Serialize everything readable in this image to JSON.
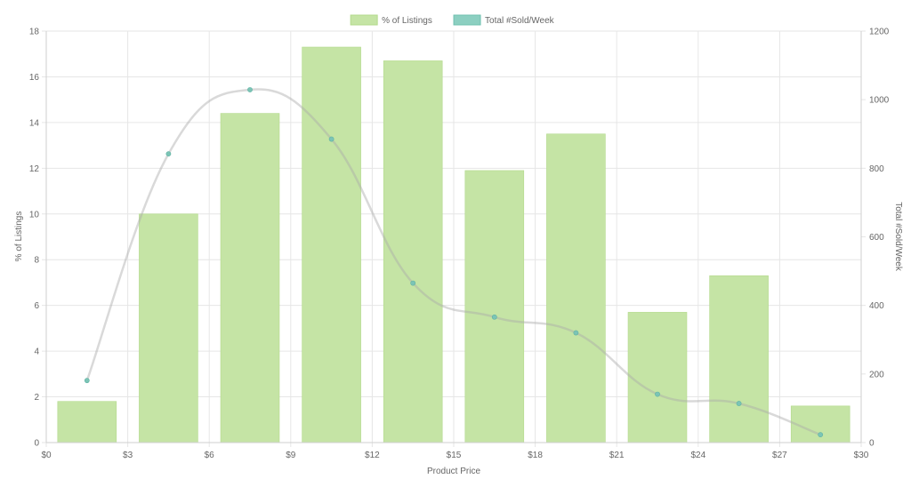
{
  "chart_data": {
    "type": "bar",
    "legend": [
      {
        "label": "% of Listings",
        "color": "#c5e4a5",
        "border": "#b3da8c"
      },
      {
        "label": "Total #Sold/Week",
        "color": "#8ccfc1",
        "border": "#6fc0b0"
      }
    ],
    "legend_position": "top-center",
    "xlabel": "Product Price",
    "ylabel_left": "% of Listings",
    "ylabel_right": "Total #Sold/Week",
    "x_ticks": [
      "$0",
      "$3",
      "$6",
      "$9",
      "$12",
      "$15",
      "$18",
      "$21",
      "$24",
      "$27",
      "$30"
    ],
    "x_range": [
      0,
      30
    ],
    "y_left_ticks": [
      "0",
      "2",
      "4",
      "6",
      "8",
      "10",
      "12",
      "14",
      "16",
      "18"
    ],
    "y_left_range": [
      0,
      18
    ],
    "y_right_ticks": [
      "0",
      "200",
      "400",
      "600",
      "800",
      "1000",
      "1200"
    ],
    "y_right_range": [
      0,
      1200
    ],
    "grid": true,
    "bins": [
      {
        "center": 1.5,
        "pct_listings": 1.8,
        "sold_per_week": 181
      },
      {
        "center": 4.5,
        "pct_listings": 10.0,
        "sold_per_week": 842
      },
      {
        "center": 7.5,
        "pct_listings": 14.4,
        "sold_per_week": 1029
      },
      {
        "center": 10.5,
        "pct_listings": 17.3,
        "sold_per_week": 885
      },
      {
        "center": 13.5,
        "pct_listings": 16.7,
        "sold_per_week": 465
      },
      {
        "center": 16.5,
        "pct_listings": 11.9,
        "sold_per_week": 366
      },
      {
        "center": 19.5,
        "pct_listings": 13.5,
        "sold_per_week": 320
      },
      {
        "center": 22.5,
        "pct_listings": 5.7,
        "sold_per_week": 141
      },
      {
        "center": 25.5,
        "pct_listings": 7.3,
        "sold_per_week": 114
      },
      {
        "center": 28.5,
        "pct_listings": 1.6,
        "sold_per_week": 23
      }
    ],
    "colors": {
      "bar_fill": "#c5e4a5",
      "line": "#d9d9d9",
      "point": "#7cc4b6",
      "grid": "#e6e6e6",
      "text": "#666666"
    }
  }
}
